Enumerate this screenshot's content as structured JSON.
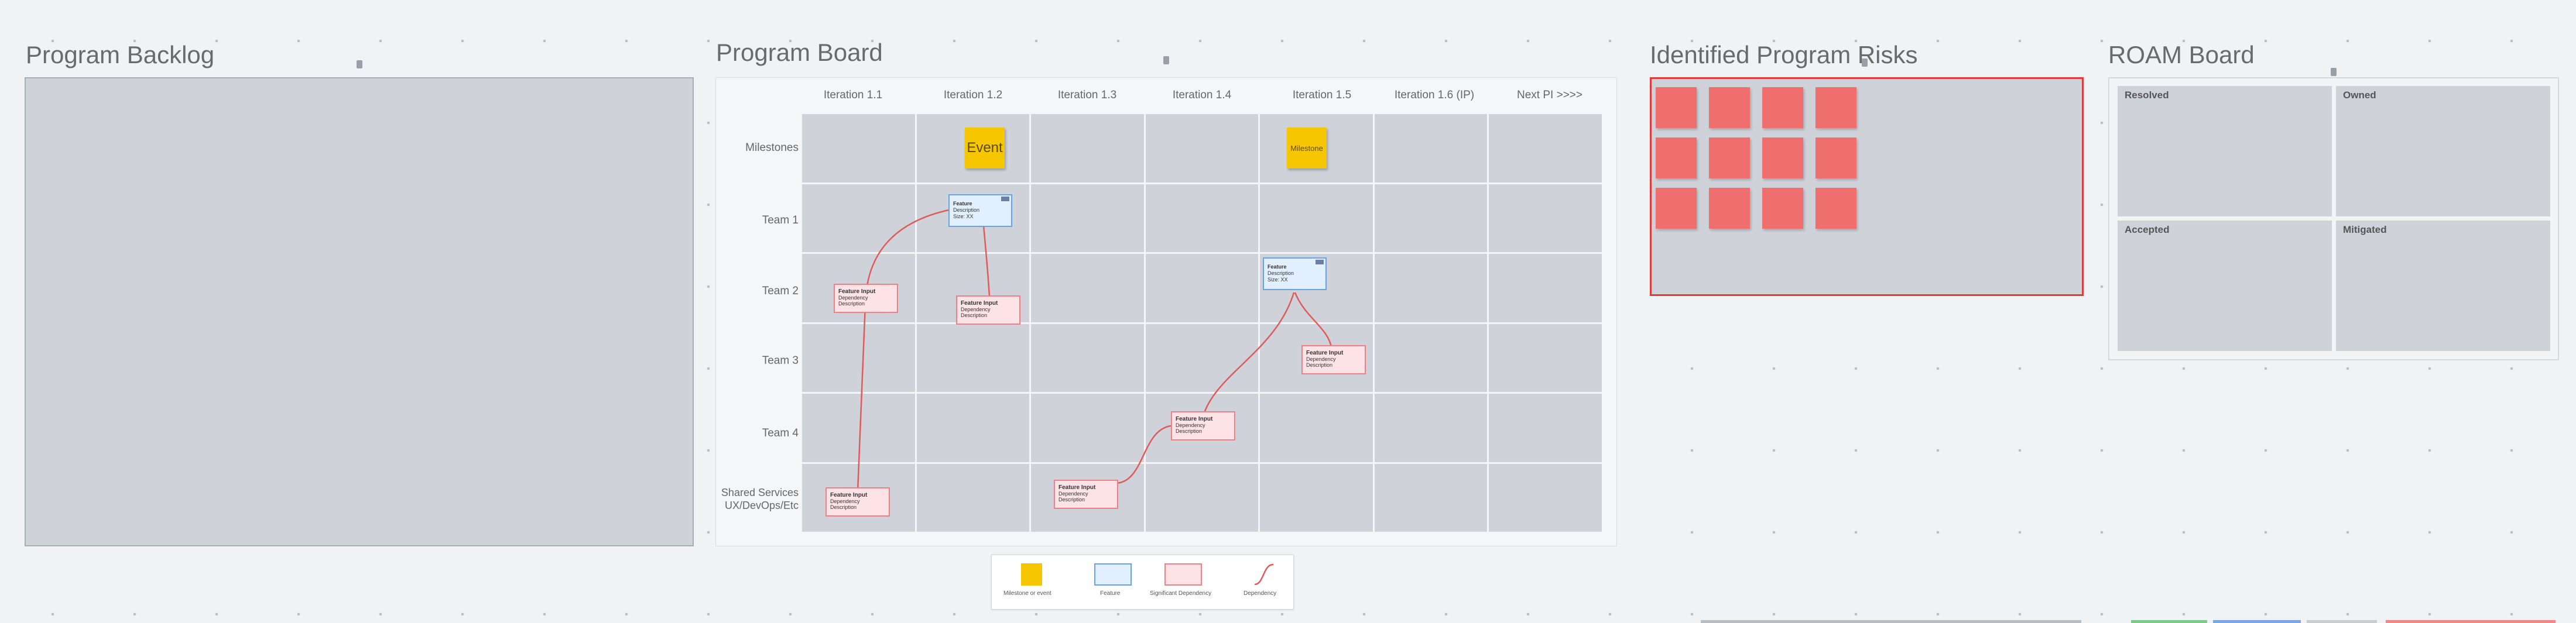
{
  "sections": {
    "backlog_title": "Program Backlog",
    "board_title": "Program Board",
    "risks_title": "Identified Program Risks",
    "roam_title": "ROAM Board"
  },
  "board": {
    "columns": [
      "Iteration 1.1",
      "Iteration 1.2",
      "Iteration 1.3",
      "Iteration 1.4",
      "Iteration 1.5",
      "Iteration 1.6 (IP)",
      "Next PI >>>>"
    ],
    "rows": [
      "Milestones",
      "Team 1",
      "Team 2",
      "Team 3",
      "Team 4",
      "Shared Services UX/DevOps/Etc"
    ],
    "event_label": "Event",
    "milestone_label": "Milestone",
    "feature": {
      "title": "Feature",
      "line1": "Description",
      "line2": "Size: XX"
    },
    "dependency": {
      "title": "Feature Input",
      "line1": "Dependency Description"
    }
  },
  "roam": {
    "quadrants": [
      "Resolved",
      "Owned",
      "Accepted",
      "Mitigated"
    ]
  },
  "legend": {
    "items": [
      "Milestone or event",
      "Feature",
      "Significant Dependency",
      "Dependency"
    ]
  },
  "colors": {
    "milestone": "#f6c700",
    "feature": "#e2efff",
    "dependency": "#fde3e5",
    "risk": "#ef6f6f",
    "risk_frame": "#e03b3b",
    "connector": "#e05a5a"
  }
}
